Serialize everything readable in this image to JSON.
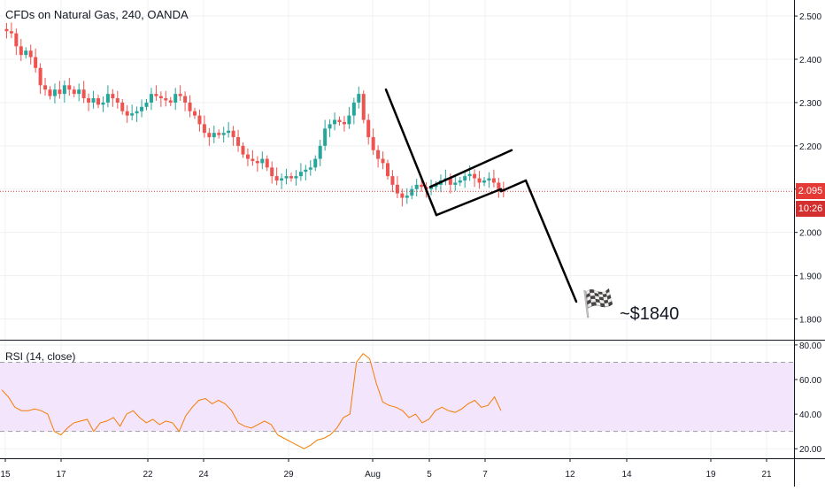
{
  "title": "CFDs on Natural Gas, 240, OANDA",
  "rsi_label": "RSI (14, close)",
  "annotation": "~$1840",
  "flag_glyph": "🏁",
  "current_price_label": "2.095",
  "countdown_label": "10:26",
  "colors": {
    "up": "#26a69a",
    "down": "#ef5350",
    "rsi_line": "#f57c00",
    "rsi_band": "#f3e5fc",
    "price_line": "#e53935",
    "countdown_bg": "#d32f2f"
  },
  "chart_data": [
    {
      "type": "candlestick",
      "title": "CFDs on Natural Gas, 240, OANDA",
      "x_ticks": [
        "15",
        "17",
        "22",
        "24",
        "29",
        "Aug",
        "5",
        "7",
        "12",
        "14",
        "19",
        "21"
      ],
      "y_ticks": [
        "1.800",
        "1.900",
        "2.000",
        "2.100",
        "2.200",
        "2.300",
        "2.400",
        "2.500"
      ],
      "ylim": [
        1.752,
        2.537
      ],
      "current_price": 2.095,
      "close_path": [
        2.47,
        2.465,
        2.46,
        2.43,
        2.41,
        2.42,
        2.405,
        2.38,
        2.34,
        2.33,
        2.315,
        2.33,
        2.32,
        2.34,
        2.33,
        2.32,
        2.33,
        2.31,
        2.3,
        2.31,
        2.295,
        2.3,
        2.32,
        2.31,
        2.3,
        2.28,
        2.27,
        2.275,
        2.28,
        2.29,
        2.3,
        2.32,
        2.315,
        2.31,
        2.305,
        2.3,
        2.32,
        2.315,
        2.3,
        2.28,
        2.27,
        2.25,
        2.23,
        2.22,
        2.23,
        2.225,
        2.23,
        2.235,
        2.22,
        2.2,
        2.18,
        2.17,
        2.165,
        2.16,
        2.17,
        2.15,
        2.13,
        2.12,
        2.125,
        2.13,
        2.125,
        2.13,
        2.14,
        2.145,
        2.15,
        2.17,
        2.2,
        2.24,
        2.25,
        2.26,
        2.255,
        2.25,
        2.27,
        2.3,
        2.32,
        2.26,
        2.22,
        2.19,
        2.17,
        2.16,
        2.13,
        2.11,
        2.09,
        2.08,
        2.085,
        2.1,
        2.11,
        2.105,
        2.1,
        2.105,
        2.11,
        2.12,
        2.125,
        2.11,
        2.115,
        2.12,
        2.13,
        2.135,
        2.125,
        2.115,
        2.12,
        2.125,
        2.115,
        2.1,
        2.095
      ],
      "trendlines": [
        {
          "from": [
            "Aug",
            2.33
          ],
          "to": [
            "5",
            2.04
          ]
        },
        {
          "from": [
            "5",
            2.04
          ],
          "to": [
            "7",
            2.1
          ]
        },
        {
          "from": [
            "5",
            2.105
          ],
          "to": [
            "7",
            2.19
          ]
        },
        {
          "from": [
            "7",
            2.095
          ],
          "to": [
            "7+",
            2.12
          ]
        },
        {
          "from": [
            "7+",
            2.12
          ],
          "to": [
            "12",
            1.84
          ]
        }
      ]
    },
    {
      "type": "line",
      "title": "RSI (14, close)",
      "y_ticks": [
        "20.00",
        "40.00",
        "60.00",
        "80.00"
      ],
      "ylim": [
        14.5,
        82.5
      ],
      "bands": [
        30,
        70
      ],
      "series": [
        {
          "values": [
            54,
            50,
            44,
            42,
            42,
            43,
            42,
            40,
            30,
            28,
            32,
            35,
            36,
            37,
            30,
            35,
            36,
            38,
            33,
            40,
            42,
            38,
            35,
            37,
            34,
            36,
            35,
            30,
            39,
            44,
            48,
            49,
            46,
            48,
            46,
            42,
            35,
            33,
            32,
            34,
            36,
            34,
            28,
            26,
            24,
            22,
            20,
            22,
            25,
            26,
            28,
            32,
            38,
            40,
            70,
            75,
            72,
            58,
            47,
            45,
            44,
            42,
            38,
            40,
            35,
            37,
            42,
            44,
            42,
            41,
            43,
            46,
            48,
            44,
            45,
            50,
            42
          ]
        }
      ]
    }
  ]
}
